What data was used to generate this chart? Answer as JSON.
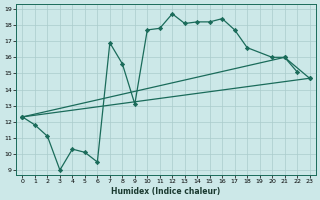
{
  "xlabel": "Humidex (Indice chaleur)",
  "bg_color": "#cce8e8",
  "grid_color": "#aacccc",
  "line_color": "#1a6b5a",
  "xlim": [
    -0.5,
    23.5
  ],
  "ylim": [
    8.7,
    19.3
  ],
  "xticks": [
    0,
    1,
    2,
    3,
    4,
    5,
    6,
    7,
    8,
    9,
    10,
    11,
    12,
    13,
    14,
    15,
    16,
    17,
    18,
    19,
    20,
    21,
    22,
    23
  ],
  "yticks": [
    9,
    10,
    11,
    12,
    13,
    14,
    15,
    16,
    17,
    18,
    19
  ],
  "curve_x": [
    0,
    1,
    2,
    3,
    4,
    5,
    6,
    7,
    8,
    9,
    10,
    11,
    12,
    13,
    14,
    15,
    16,
    17,
    18,
    20,
    21,
    22
  ],
  "curve_y": [
    12.3,
    11.8,
    11.1,
    9.0,
    10.3,
    10.1,
    9.5,
    16.9,
    15.6,
    13.1,
    17.7,
    17.8,
    18.7,
    18.1,
    18.2,
    18.2,
    18.4,
    17.7,
    16.6,
    16.0,
    16.0,
    15.1
  ],
  "line1_x": [
    0,
    23
  ],
  "line1_y": [
    12.3,
    14.7
  ],
  "line2_x": [
    0,
    21,
    23
  ],
  "line2_y": [
    12.3,
    16.0,
    14.7
  ]
}
